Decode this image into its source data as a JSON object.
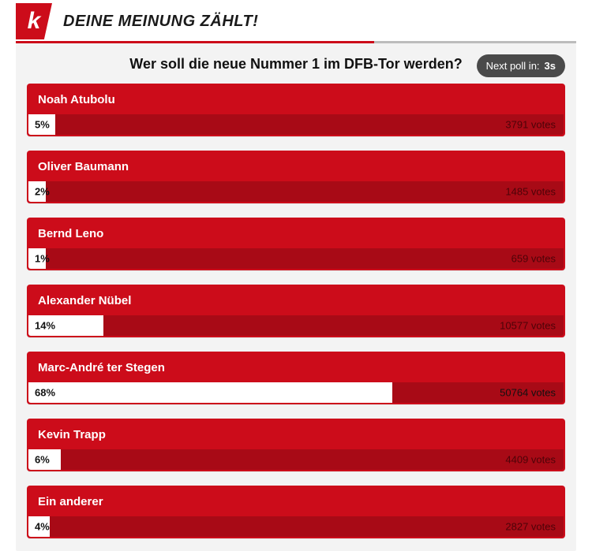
{
  "header": {
    "logo_letter": "k",
    "title": "DEINE MEINUNG ZÄHLT!"
  },
  "poll": {
    "question": "Wer soll die neue Nummer 1 im DFB-Tor werden?",
    "next_poll_label": "Next poll in:",
    "next_poll_time": "3s",
    "options": [
      {
        "name": "Noah Atubolu",
        "pct": "5%",
        "votes": "3791 votes",
        "fill_pct": 5
      },
      {
        "name": "Oliver Baumann",
        "pct": "2%",
        "votes": "1485 votes",
        "fill_pct": 2
      },
      {
        "name": "Bernd Leno",
        "pct": "1%",
        "votes": "659 votes",
        "fill_pct": 1
      },
      {
        "name": "Alexander Nübel",
        "pct": "14%",
        "votes": "10577 votes",
        "fill_pct": 14
      },
      {
        "name": "Marc-André ter Stegen",
        "pct": "68%",
        "votes": "50764 votes",
        "fill_pct": 68
      },
      {
        "name": "Kevin Trapp",
        "pct": "6%",
        "votes": "4409 votes",
        "fill_pct": 6
      },
      {
        "name": "Ein anderer",
        "pct": "4%",
        "votes": "2827 votes",
        "fill_pct": 4
      }
    ]
  },
  "colors": {
    "red": "#cc0c1a",
    "red_dark": "#a80a16",
    "grey_bg": "#f3f3f3",
    "pill": "#4a4a4a"
  }
}
